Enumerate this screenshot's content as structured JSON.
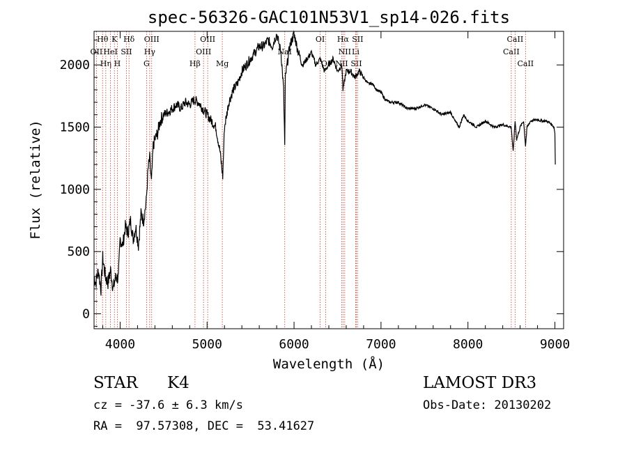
{
  "chart_data": {
    "type": "line",
    "title": "spec-56326-GAC101N53V1_sp14-026.fits",
    "xlabel": "Wavelength (Å)",
    "ylabel": "Flux (relative)",
    "xlim": [
      3700,
      9100
    ],
    "ylim": [
      -120,
      2270
    ],
    "xticks": [
      "4000",
      "5000",
      "6000",
      "7000",
      "8000",
      "9000"
    ],
    "yticks": [
      "0",
      "500",
      "1000",
      "1500",
      "2000"
    ],
    "grid": false,
    "series": [
      {
        "name": "spectrum",
        "x": [
          3700,
          3720,
          3750,
          3780,
          3800,
          3830,
          3860,
          3890,
          3920,
          3950,
          3980,
          4000,
          4030,
          4060,
          4090,
          4120,
          4150,
          4180,
          4210,
          4240,
          4270,
          4300,
          4320,
          4340,
          4360,
          4380,
          4400,
          4430,
          4460,
          4500,
          4550,
          4600,
          4650,
          4700,
          4750,
          4800,
          4850,
          4900,
          4950,
          5000,
          5050,
          5100,
          5150,
          5180,
          5200,
          5250,
          5300,
          5350,
          5400,
          5450,
          5500,
          5550,
          5600,
          5650,
          5700,
          5750,
          5800,
          5850,
          5880,
          5893,
          5900,
          5950,
          6000,
          6050,
          6100,
          6150,
          6200,
          6250,
          6300,
          6350,
          6400,
          6450,
          6500,
          6550,
          6563,
          6600,
          6650,
          6700,
          6750,
          6800,
          6850,
          6900,
          6950,
          7000,
          7050,
          7100,
          7200,
          7300,
          7400,
          7500,
          7600,
          7700,
          7800,
          7850,
          7900,
          7950,
          8000,
          8100,
          8200,
          8300,
          8400,
          8498,
          8520,
          8542,
          8560,
          8600,
          8640,
          8662,
          8680,
          8720,
          8800,
          8850,
          8900,
          8950,
          8990,
          9000,
          9005
        ],
        "values": [
          300,
          250,
          350,
          200,
          450,
          300,
          250,
          350,
          200,
          300,
          280,
          600,
          550,
          700,
          650,
          750,
          600,
          700,
          550,
          800,
          750,
          900,
          1150,
          1250,
          1050,
          1350,
          1400,
          1450,
          1550,
          1600,
          1620,
          1650,
          1680,
          1650,
          1700,
          1680,
          1720,
          1700,
          1650,
          1600,
          1550,
          1500,
          1300,
          1100,
          1500,
          1700,
          1800,
          1850,
          1950,
          2000,
          2050,
          2100,
          2150,
          2150,
          2200,
          2150,
          2250,
          2100,
          1800,
          1350,
          1900,
          2150,
          2250,
          2100,
          2000,
          2050,
          2100,
          2000,
          2050,
          1950,
          2000,
          2050,
          1950,
          2000,
          1800,
          1950,
          1950,
          1900,
          1950,
          1900,
          1850,
          1850,
          1800,
          1780,
          1720,
          1700,
          1700,
          1650,
          1650,
          1680,
          1650,
          1600,
          1620,
          1550,
          1500,
          1600,
          1550,
          1500,
          1550,
          1500,
          1520,
          1500,
          1300,
          1550,
          1400,
          1500,
          1550,
          1350,
          1500,
          1550,
          1560,
          1550,
          1550,
          1530,
          1500,
          1450,
          1200
        ]
      }
    ],
    "lines": [
      {
        "name": "Hθ",
        "x": 3798,
        "row": 0
      },
      {
        "name": "OII",
        "x": 3727,
        "row": 1
      },
      {
        "name": "Hη",
        "x": 3835,
        "row": 2
      },
      {
        "name": "HeI",
        "x": 3889,
        "row": 1
      },
      {
        "name": "K",
        "x": 3934,
        "row": 0
      },
      {
        "name": "H",
        "x": 3968,
        "row": 2
      },
      {
        "name": "SII",
        "x": 4072,
        "row": 1
      },
      {
        "name": "Hδ",
        "x": 4102,
        "row": 0
      },
      {
        "name": "OIII",
        "x": 4363,
        "row": 0
      },
      {
        "name": "Hγ",
        "x": 4340,
        "row": 1
      },
      {
        "name": "G",
        "x": 4304,
        "row": 2
      },
      {
        "name": "Hβ",
        "x": 4861,
        "row": 2
      },
      {
        "name": "OIII",
        "x": 4959,
        "row": 1
      },
      {
        "name": "OIII",
        "x": 5007,
        "row": 0
      },
      {
        "name": "Mg",
        "x": 5175,
        "row": 2
      },
      {
        "name": "NaI",
        "x": 5893,
        "row": 1
      },
      {
        "name": "OI",
        "x": 6300,
        "row": 0
      },
      {
        "name": "OI",
        "x": 6364,
        "row": 2
      },
      {
        "name": "NII",
        "x": 6548,
        "row": 2
      },
      {
        "name": "Hα",
        "x": 6563,
        "row": 0
      },
      {
        "name": "NII",
        "x": 6583,
        "row": 1
      },
      {
        "name": "Li",
        "x": 6708,
        "row": 1
      },
      {
        "name": "SII",
        "x": 6716,
        "row": 2
      },
      {
        "name": "SII",
        "x": 6731,
        "row": 0
      },
      {
        "name": "CaII",
        "x": 8498,
        "row": 1
      },
      {
        "name": "CaII",
        "x": 8542,
        "row": 0
      },
      {
        "name": "CaII",
        "x": 8662,
        "row": 2
      }
    ]
  },
  "info": {
    "class_label": "STAR",
    "subclass": "K4",
    "redshift": "cz = -37.6 ± 6.3 km/s",
    "coords": "RA =  97.57308, DEC =  53.41627",
    "survey": "LAMOST DR3",
    "obs_date": "Obs-Date: 20130202"
  },
  "colors": {
    "spectrum": "#000000",
    "line_marker": "#c0392b"
  }
}
